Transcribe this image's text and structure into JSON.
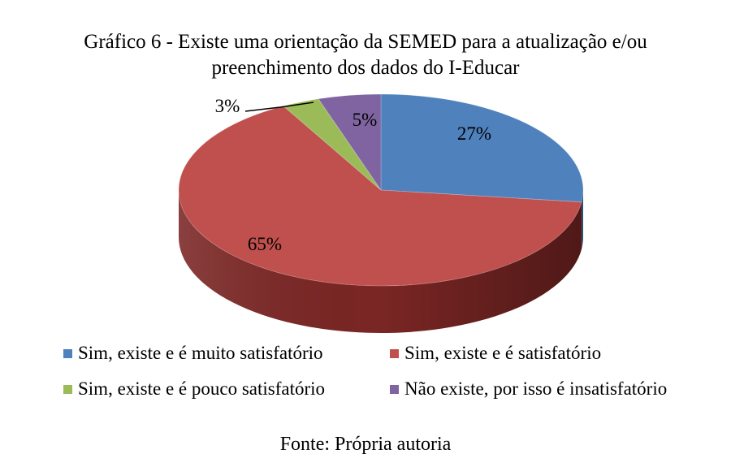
{
  "chart_data": {
    "type": "pie",
    "title_line1": "Gráfico 6 - Existe uma orientação da SEMED para a atualização e/ou",
    "title_line2": "preenchimento dos dados do I-Educar",
    "slices": [
      {
        "label": "Sim, existe e é muito satisfatório",
        "value": 27,
        "data_label": "27%",
        "color": "#4f81bd",
        "side": "#2e5580"
      },
      {
        "label": "Sim, existe e é satisfatório",
        "value": 65,
        "data_label": "65%",
        "color": "#c0504d",
        "side": "#7a2624"
      },
      {
        "label": "Sim, existe e é pouco satisfatório",
        "value": 3,
        "data_label": "3%",
        "color": "#9bbb59",
        "side": "#66803a"
      },
      {
        "label": "Não existe, por isso é insatisfatório",
        "value": 5,
        "data_label": "5%",
        "color": "#8064a2",
        "side": "#54406e"
      }
    ],
    "legend_position": "bottom",
    "style": "3d-pie"
  },
  "source": "Fonte: Própria autoria"
}
